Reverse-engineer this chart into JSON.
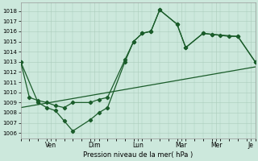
{
  "xlabel": "Pression niveau de la mer( hPa )",
  "background_color": "#cce8dc",
  "grid_color": "#aaccbb",
  "line_color": "#1a5c2a",
  "ylim": [
    1005.5,
    1018.8
  ],
  "xlim": [
    0,
    27
  ],
  "x_ticks": [
    3.5,
    8.5,
    13.5,
    18.5,
    22.5,
    26.5
  ],
  "x_tick_labels": [
    "Ven",
    "Dim",
    "Lun",
    "Mar",
    "Mer",
    "Je"
  ],
  "yticks": [
    1006,
    1007,
    1008,
    1009,
    1010,
    1011,
    1012,
    1013,
    1014,
    1015,
    1016,
    1017,
    1018
  ],
  "series1_x": [
    0,
    1,
    2,
    3,
    4,
    5,
    6,
    8,
    9,
    10,
    12,
    13,
    14,
    15,
    16,
    18,
    19,
    21,
    22,
    23,
    24,
    25,
    27
  ],
  "series1_y": [
    1013.0,
    1009.5,
    1009.2,
    1009.0,
    1008.7,
    1008.5,
    1009.0,
    1009.0,
    1009.3,
    1009.5,
    1013.2,
    1015.0,
    1015.8,
    1016.0,
    1018.1,
    1016.7,
    1014.4,
    1015.8,
    1015.7,
    1015.6,
    1015.5,
    1015.5,
    1013.0
  ],
  "series2_x": [
    0,
    2,
    3,
    4,
    5,
    6,
    8,
    9,
    10,
    12,
    13,
    14,
    15,
    16,
    18,
    19,
    21,
    22,
    25,
    27
  ],
  "series2_y": [
    1013.0,
    1009.0,
    1008.5,
    1008.2,
    1007.2,
    1006.2,
    1007.3,
    1008.0,
    1008.5,
    1013.0,
    1015.0,
    1015.8,
    1016.0,
    1018.1,
    1016.7,
    1014.4,
    1015.8,
    1015.7,
    1015.5,
    1013.0
  ],
  "series3_x": [
    0,
    27
  ],
  "series3_y": [
    1008.5,
    1012.5
  ]
}
